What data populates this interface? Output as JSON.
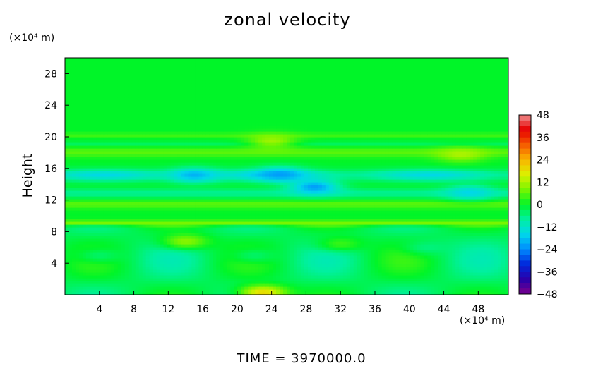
{
  "chart_data": {
    "type": "heatmap",
    "title": "zonal velocity",
    "ylabel": "Height",
    "y_unit_label": "(×10⁴ m)",
    "x_unit_label": "(×10⁴ m)",
    "footer": "TIME  =  3970000.0",
    "xlim": [
      0,
      51.5
    ],
    "ylim": [
      0,
      30
    ],
    "x_ticks": [
      "4",
      "8",
      "12",
      "16",
      "20",
      "24",
      "28",
      "32",
      "36",
      "40",
      "44",
      "48"
    ],
    "x_tick_values": [
      4,
      8,
      12,
      16,
      20,
      24,
      28,
      32,
      36,
      40,
      44,
      48
    ],
    "y_ticks": [
      "4",
      "8",
      "12",
      "16",
      "20",
      "24",
      "28"
    ],
    "y_tick_values": [
      4,
      8,
      12,
      16,
      20,
      24,
      28
    ],
    "colorbar": {
      "range": [
        -48,
        48
      ],
      "tick_labels": [
        "48",
        "36",
        "24",
        "12",
        "0",
        "−12",
        "−24",
        "−36",
        "−48"
      ],
      "tick_values": [
        48,
        36,
        24,
        12,
        0,
        -12,
        -24,
        -36,
        -48
      ]
    },
    "features": [
      {
        "x": 23,
        "y": 0.3,
        "value": 26
      },
      {
        "x": 14,
        "y": 6.8,
        "value": 13
      },
      {
        "x": 32,
        "y": 6.5,
        "value": 6
      },
      {
        "x": 4,
        "y": 5.0,
        "value": -6
      },
      {
        "x": 22,
        "y": 5.0,
        "value": -6
      },
      {
        "x": 42,
        "y": 6.0,
        "value": -7
      },
      {
        "x": 15,
        "y": 15.2,
        "value": -23
      },
      {
        "x": 25,
        "y": 15.3,
        "value": -24
      },
      {
        "x": 29,
        "y": 13.7,
        "value": -27
      },
      {
        "x": 46,
        "y": 17.8,
        "value": 14
      },
      {
        "x": 24,
        "y": 19.5,
        "value": 14
      },
      {
        "x": 47,
        "y": 13.0,
        "value": -18
      }
    ]
  }
}
